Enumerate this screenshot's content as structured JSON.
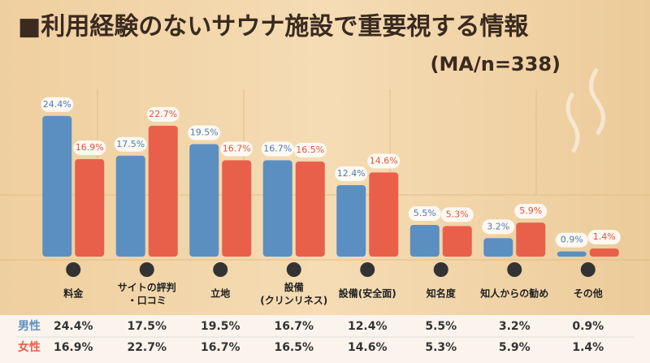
{
  "chart_data": {
    "type": "bar",
    "title": "■利用経験のないサウナ施設で重要視する情報",
    "subtitle": "(MA/n=338)",
    "categories": [
      "料金",
      "サイトの評判\n・口コミ",
      "立地",
      "設備\n(クリンリネス)",
      "設備(安全面)",
      "知名度",
      "知人からの勧め",
      "その他"
    ],
    "series": [
      {
        "name": "男性",
        "color": "#5b8fc2",
        "values": [
          24.4,
          17.5,
          19.5,
          16.7,
          12.4,
          5.5,
          3.2,
          0.9
        ],
        "value_labels": [
          "24.4%",
          "17.5%",
          "19.5%",
          "16.7%",
          "12.4%",
          "5.5%",
          "3.2%",
          "0.9%"
        ]
      },
      {
        "name": "女性",
        "color": "#e8604a",
        "values": [
          16.9,
          22.7,
          16.7,
          16.5,
          14.6,
          5.3,
          5.9,
          1.4
        ],
        "value_labels": [
          "16.9%",
          "22.7%",
          "16.7%",
          "16.5%",
          "14.6%",
          "5.3%",
          "5.9%",
          "1.4%"
        ]
      }
    ]
  }
}
